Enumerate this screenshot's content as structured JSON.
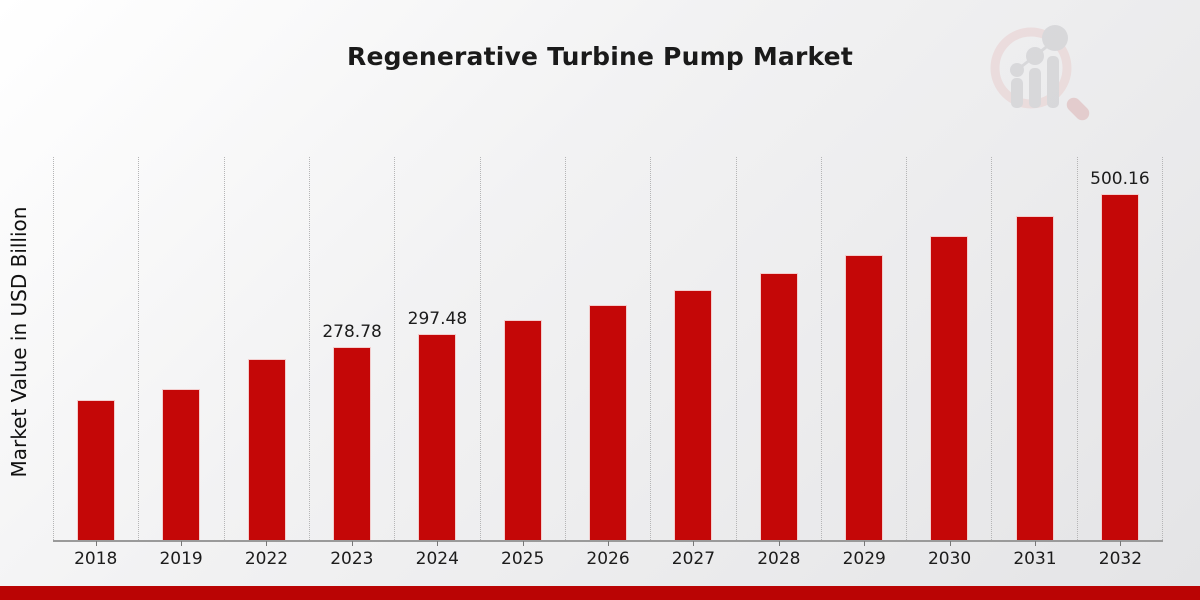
{
  "page": {
    "title": "Regenerative Turbine Pump Market"
  },
  "colors": {
    "bar": "#c40707",
    "bottom_stripe": "#ba0404",
    "background_start": "#ffffff",
    "background_end": "#e4e4e6",
    "gridline": "#b5b5b6",
    "axis_line": "#9a9a9a",
    "text": "#1c1c1c"
  },
  "watermark": {
    "description": "magnifying-glass-with-bar-chart logo, faint red and gray"
  },
  "chart_data": {
    "type": "bar",
    "title": "Regenerative Turbine Pump Market",
    "xlabel": "",
    "ylabel": "Market Value in USD Billion",
    "categories": [
      "2018",
      "2019",
      "2022",
      "2023",
      "2024",
      "2025",
      "2026",
      "2027",
      "2028",
      "2029",
      "2030",
      "2031",
      "2032"
    ],
    "values": [
      202.2,
      217.4,
      261.3,
      278.78,
      297.48,
      317.4,
      338.7,
      361.4,
      385.6,
      411.4,
      438.9,
      468.4,
      500.16
    ],
    "data_labels": [
      "",
      "",
      "",
      "278.78",
      "297.48",
      "",
      "",
      "",
      "",
      "",
      "",
      "",
      "500.16"
    ],
    "ylim": [
      0,
      553
    ],
    "bar_color": "#c40707",
    "grid": "vertical dotted gridlines between categories",
    "legend": "none",
    "y_axis_ticks": "none (no numeric tick labels shown)"
  }
}
